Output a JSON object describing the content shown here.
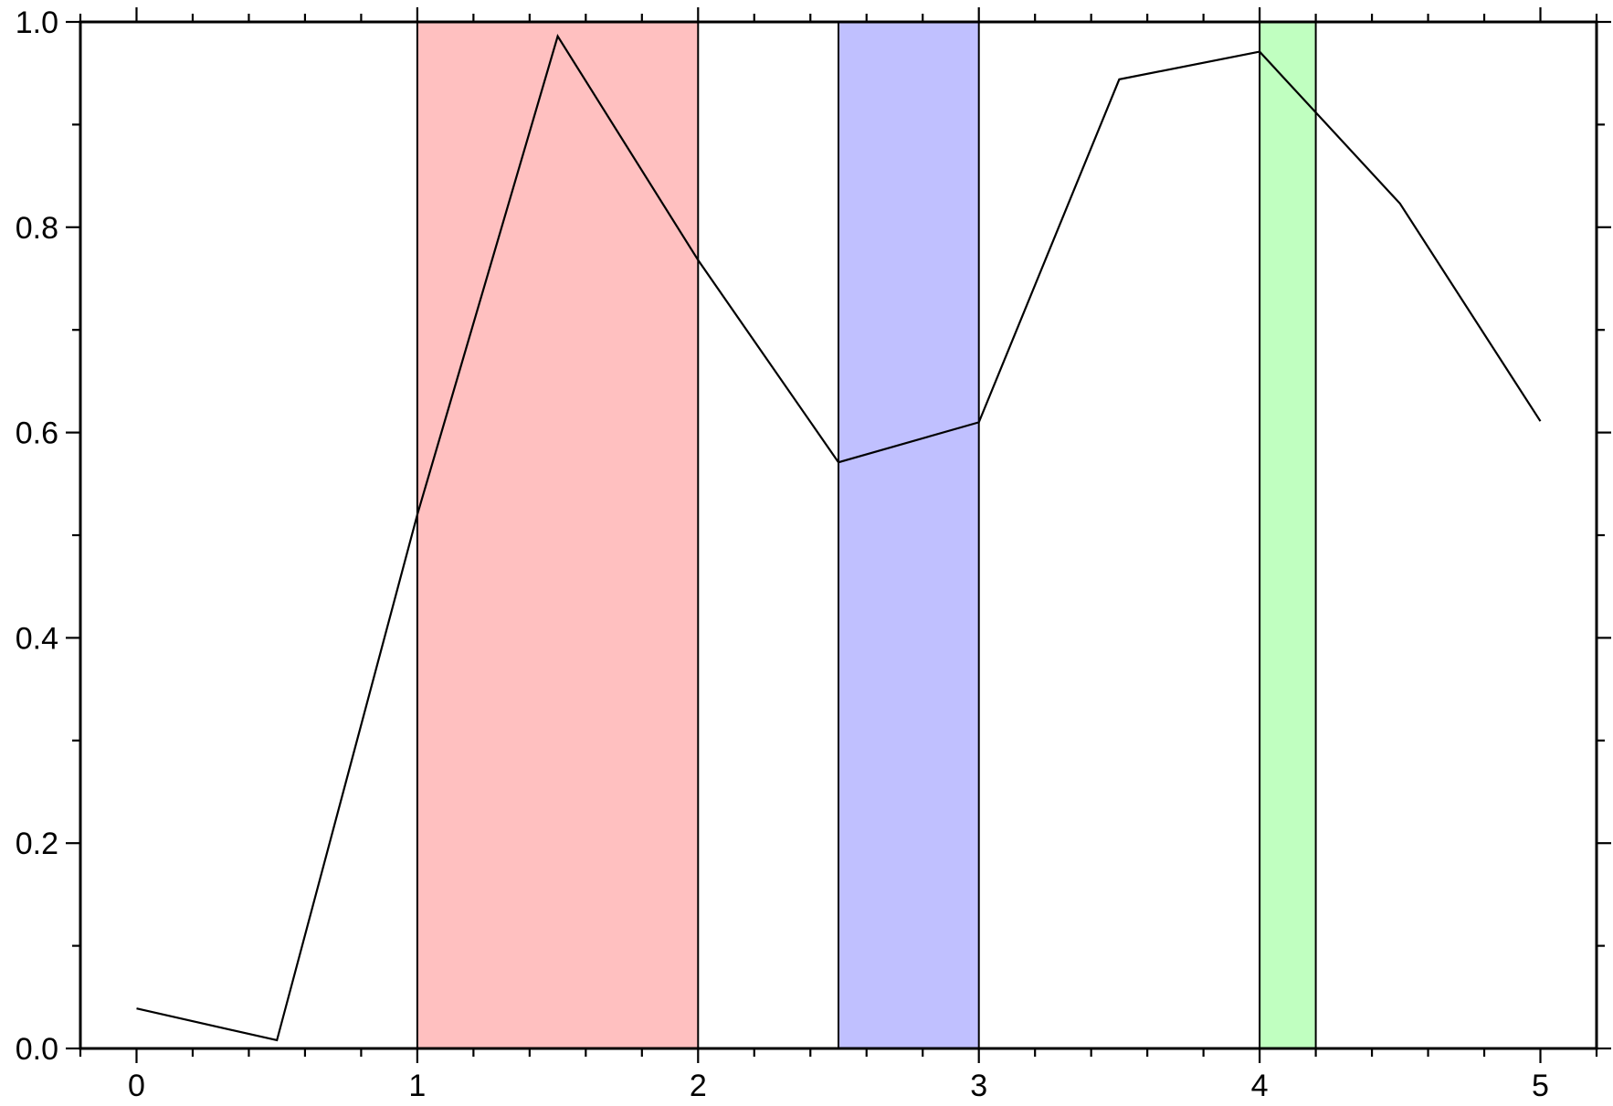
{
  "chart_data": {
    "type": "line",
    "title": "",
    "xlabel": "",
    "ylabel": "",
    "xlim": [
      -0.2,
      5.2
    ],
    "ylim": [
      0.0,
      1.0
    ],
    "grid": false,
    "x_ticks": [
      0,
      1,
      2,
      3,
      4,
      5
    ],
    "x_tick_labels": [
      "0",
      "1",
      "2",
      "3",
      "4",
      "5"
    ],
    "x_minor_step": 0.2,
    "y_ticks": [
      0.0,
      0.2,
      0.4,
      0.6,
      0.8,
      1.0
    ],
    "y_tick_labels": [
      "0.0",
      "0.2",
      "0.4",
      "0.6",
      "0.8",
      "1.0"
    ],
    "y_minor_step": 0.1,
    "series": [
      {
        "x": [
          0.0,
          0.5,
          1.0,
          1.5,
          2.0,
          2.5,
          3.0,
          3.5,
          4.0,
          4.5,
          5.0
        ],
        "y": [
          0.039,
          0.008,
          0.52,
          0.986,
          0.768,
          0.571,
          0.61,
          0.944,
          0.971,
          0.823,
          0.611
        ],
        "color": "#000000"
      }
    ],
    "shaded_spans": [
      {
        "x0": 1.0,
        "x1": 2.0,
        "color": "#ffc0c0"
      },
      {
        "x0": 2.5,
        "x1": 3.0,
        "color": "#c0c0ff"
      },
      {
        "x0": 4.0,
        "x1": 4.2,
        "color": "#c0ffc0"
      }
    ]
  }
}
